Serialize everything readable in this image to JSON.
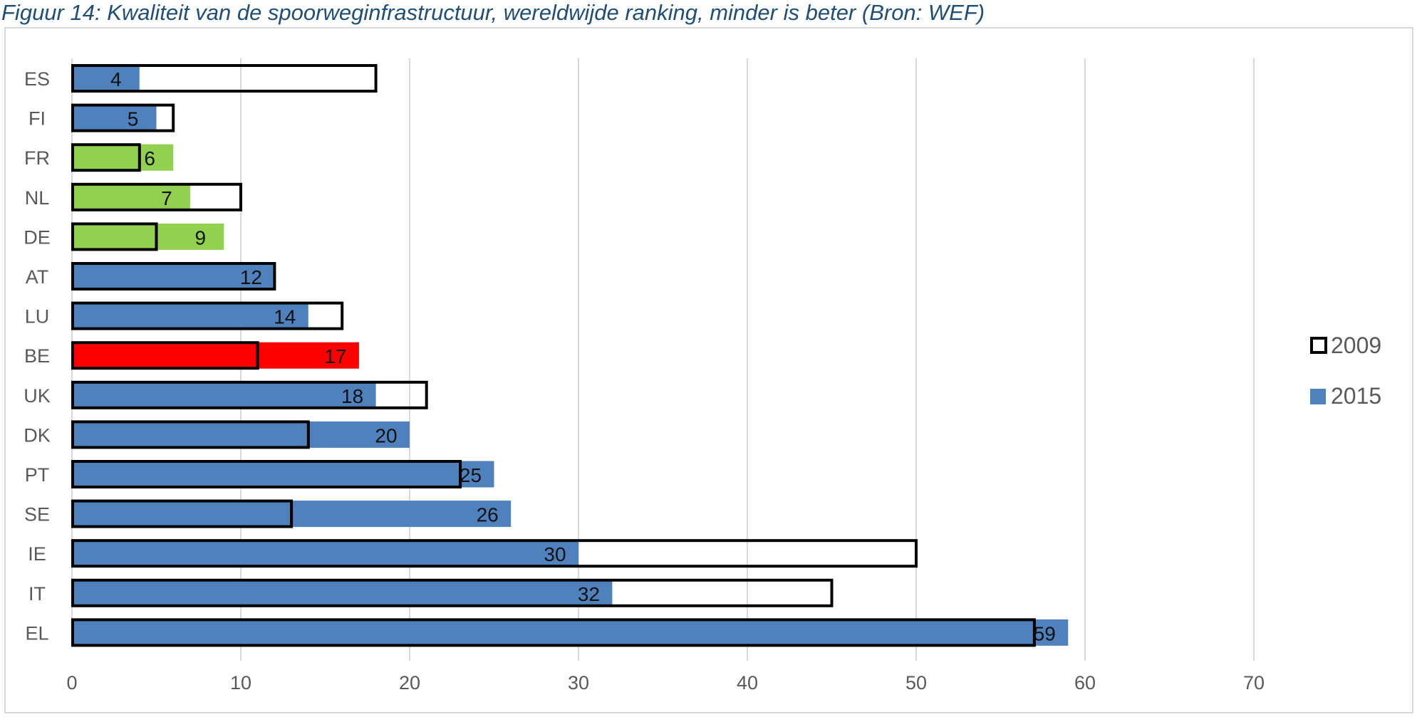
{
  "title": "Figuur 14: Kwaliteit van de spoorweginfrastructuur, wereldwijde ranking, minder is beter (Bron: WEF)",
  "chart_data": {
    "type": "bar",
    "orientation": "horizontal",
    "categories": [
      "ES",
      "FI",
      "FR",
      "NL",
      "DE",
      "AT",
      "LU",
      "BE",
      "UK",
      "DK",
      "PT",
      "SE",
      "IE",
      "IT",
      "EL"
    ],
    "series": [
      {
        "name": "2009",
        "style": "outline",
        "color": "#000000",
        "values": [
          18,
          6,
          4,
          10,
          5,
          12,
          16,
          11,
          21,
          14,
          23,
          13,
          50,
          45,
          57
        ]
      },
      {
        "name": "2015",
        "style": "filled",
        "values": [
          4,
          5,
          6,
          7,
          9,
          12,
          14,
          17,
          18,
          20,
          25,
          26,
          30,
          32,
          59
        ],
        "labels": [
          "4",
          "5",
          "6",
          "7",
          "9",
          "12",
          "14",
          "17",
          "18",
          "20",
          "25",
          "26",
          "30",
          "32",
          "59"
        ],
        "colors": [
          "#4f81bd",
          "#4f81bd",
          "#92d050",
          "#92d050",
          "#92d050",
          "#4f81bd",
          "#4f81bd",
          "#ff0000",
          "#4f81bd",
          "#4f81bd",
          "#4f81bd",
          "#4f81bd",
          "#4f81bd",
          "#4f81bd",
          "#4f81bd"
        ]
      }
    ],
    "xlim": [
      0,
      70
    ],
    "xticks": [
      "0",
      "10",
      "20",
      "30",
      "40",
      "50",
      "60",
      "70"
    ],
    "grid": "vertical",
    "legend": {
      "position": "right",
      "entries": [
        "2009",
        "2015"
      ]
    },
    "colors": {
      "default_bar": "#4f81bd",
      "grid": "#d9d9d9"
    },
    "xlabel": "",
    "ylabel": ""
  }
}
